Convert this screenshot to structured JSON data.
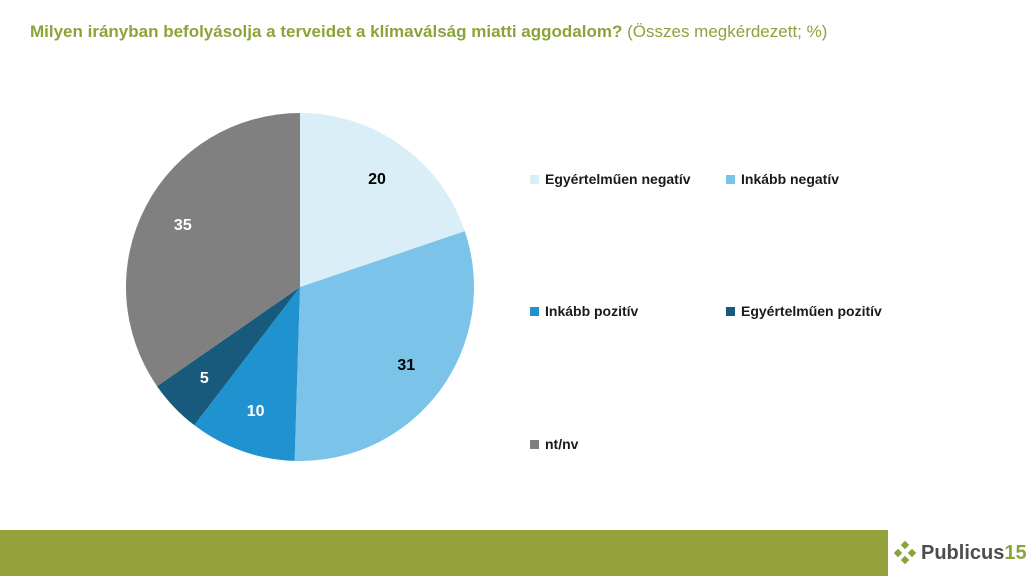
{
  "title": {
    "bold": "Milyen irányban befolyásolja a terveidet a klímaválság miatti aggodalom?",
    "normal": "(Összes megkérdezett; %)"
  },
  "chart_data": {
    "type": "pie",
    "slices": [
      {
        "label": "Egyértelműen negatív",
        "value": 20,
        "color": "#daeef8",
        "label_color": "#000000"
      },
      {
        "label": "Inkább negatív",
        "value": 31,
        "color": "#7cc3ea",
        "label_color": "#000000"
      },
      {
        "label": "Inkább pozitív",
        "value": 10,
        "color": "#2192d0",
        "label_color": "#ffffff"
      },
      {
        "label": "Egyértelműen pozitív",
        "value": 5,
        "color": "#175a7c",
        "label_color": "#ffffff"
      },
      {
        "label": "nt/nv",
        "value": 35,
        "color": "#808080",
        "label_color": "#ffffff"
      }
    ],
    "start_angle_deg": 0,
    "direction": "clockwise",
    "legend_position": "right"
  },
  "logo": {
    "name": "Publicus",
    "number": "15",
    "icon": "diamond-cluster-icon",
    "color": "#8aa43a"
  }
}
